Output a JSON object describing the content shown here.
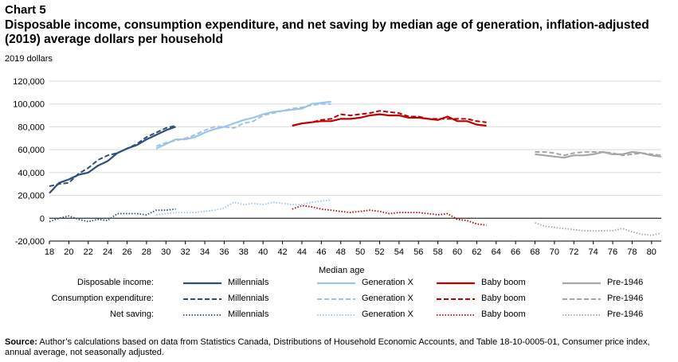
{
  "chart_label": "Chart 5",
  "title": "Disposable income, consumption expenditure, and net saving by median age of generation, inflation-adjusted (2019) average dollars per household",
  "unit_label": "2019 dollars",
  "source": {
    "prefix": "Source:",
    "text": " Author’s calculations based on data from Statistics Canada, Distributions of Household Economic Accounts, and Table 18-10-0005-01, Consumer price index, annual average, not seasonally adjusted."
  },
  "chart_data": {
    "type": "line",
    "xlabel": "Median age",
    "ylabel": "2019 dollars",
    "xlim": [
      18,
      81
    ],
    "ylim": [
      -20000,
      120000
    ],
    "x_ticks": [
      18,
      20,
      22,
      24,
      26,
      28,
      30,
      32,
      34,
      36,
      38,
      40,
      42,
      44,
      46,
      48,
      50,
      52,
      54,
      56,
      58,
      60,
      62,
      64,
      66,
      68,
      70,
      72,
      74,
      76,
      78,
      80
    ],
    "y_ticks": [
      -20000,
      0,
      20000,
      40000,
      60000,
      80000,
      100000,
      120000
    ],
    "y_tick_labels": [
      "-20,000",
      "0",
      "20,000",
      "40,000",
      "60,000",
      "80,000",
      "100,000",
      "120,000"
    ],
    "grid": "horizontal",
    "legend_position": "bottom",
    "legend_rows": [
      "Disposable income:",
      "Consumption expenditure:",
      "Net saving:"
    ],
    "legend_generations": [
      "Millennials",
      "Generation X",
      "Baby boom",
      "Pre-1946"
    ],
    "colors": {
      "Millennials": "#2d4f78",
      "Generation X": "#9dc3e6",
      "Baby boom": "#c00000",
      "Pre-1946": "#a6a6a6"
    },
    "series": [
      {
        "generation": "Millennials",
        "measure": "Disposable income",
        "style": "solid",
        "x": [
          18,
          19,
          20,
          21,
          22,
          23,
          24,
          25,
          26,
          27,
          28,
          29,
          30,
          31
        ],
        "y": [
          22000,
          31000,
          34000,
          38000,
          40000,
          46000,
          50000,
          57000,
          61000,
          64000,
          69000,
          73000,
          77000,
          80000
        ]
      },
      {
        "generation": "Millennials",
        "measure": "Consumption expenditure",
        "style": "dashed",
        "x": [
          18,
          19,
          20,
          21,
          22,
          23,
          24,
          25,
          26,
          27,
          28,
          29,
          30,
          31
        ],
        "y": [
          28000,
          30000,
          31000,
          39000,
          44000,
          51000,
          55000,
          57000,
          61000,
          65000,
          71000,
          75000,
          79000,
          81000
        ]
      },
      {
        "generation": "Millennials",
        "measure": "Net saving",
        "style": "dotted",
        "x": [
          18,
          19,
          20,
          21,
          22,
          23,
          24,
          25,
          26,
          27,
          28,
          29,
          30,
          31
        ],
        "y": [
          -3000,
          0,
          2000,
          -1000,
          -3000,
          -1000,
          -2000,
          4000,
          4000,
          4000,
          3000,
          7000,
          7000,
          8000
        ]
      },
      {
        "generation": "Generation X",
        "measure": "Disposable income",
        "style": "solid",
        "x": [
          29,
          30,
          31,
          32,
          33,
          34,
          35,
          36,
          37,
          38,
          39,
          40,
          41,
          42,
          43,
          44,
          45,
          46,
          47
        ],
        "y": [
          61000,
          65000,
          69000,
          69000,
          71000,
          75000,
          78000,
          80000,
          83000,
          86000,
          88000,
          91000,
          93000,
          94000,
          95000,
          96000,
          100000,
          101000,
          102000
        ]
      },
      {
        "generation": "Generation X",
        "measure": "Consumption expenditure",
        "style": "dashed",
        "x": [
          29,
          30,
          31,
          32,
          33,
          34,
          35,
          36,
          37,
          38,
          39,
          40,
          41,
          42,
          43,
          44,
          45,
          46,
          47
        ],
        "y": [
          63000,
          66000,
          68000,
          70000,
          73000,
          77000,
          80000,
          80000,
          79000,
          83000,
          85000,
          90000,
          92000,
          94000,
          96000,
          97000,
          99000,
          100000,
          100000
        ]
      },
      {
        "generation": "Generation X",
        "measure": "Net saving",
        "style": "dotted",
        "x": [
          29,
          30,
          31,
          32,
          33,
          34,
          35,
          36,
          37,
          38,
          39,
          40,
          41,
          42,
          43,
          44,
          45,
          46,
          47
        ],
        "y": [
          3000,
          4000,
          5000,
          5000,
          5000,
          6000,
          7000,
          9000,
          14000,
          12000,
          13000,
          12000,
          14000,
          13000,
          12000,
          12000,
          14000,
          15000,
          16000
        ]
      },
      {
        "generation": "Baby boom",
        "measure": "Disposable income",
        "style": "solid",
        "x": [
          43,
          44,
          45,
          46,
          47,
          48,
          49,
          50,
          51,
          52,
          53,
          54,
          55,
          56,
          57,
          58,
          59,
          60,
          61,
          62,
          63
        ],
        "y": [
          81000,
          83000,
          84000,
          85000,
          85000,
          87000,
          87000,
          88000,
          90000,
          91000,
          90000,
          90000,
          88000,
          88000,
          87000,
          86000,
          89000,
          85000,
          85000,
          82000,
          81000
        ]
      },
      {
        "generation": "Baby boom",
        "measure": "Consumption expenditure",
        "style": "dashed",
        "x": [
          43,
          44,
          45,
          46,
          47,
          48,
          49,
          50,
          51,
          52,
          53,
          54,
          55,
          56,
          57,
          58,
          59,
          60,
          61,
          62,
          63
        ],
        "y": [
          81000,
          83000,
          84000,
          86000,
          87000,
          91000,
          90000,
          91000,
          92000,
          94000,
          93000,
          92000,
          89000,
          89000,
          87000,
          87000,
          87000,
          87000,
          87000,
          85000,
          84000
        ]
      },
      {
        "generation": "Baby boom",
        "measure": "Net saving",
        "style": "dotted",
        "x": [
          43,
          44,
          45,
          46,
          47,
          48,
          49,
          50,
          51,
          52,
          53,
          54,
          55,
          56,
          57,
          58,
          59,
          60,
          61,
          62,
          63
        ],
        "y": [
          8000,
          11000,
          10000,
          8000,
          7000,
          6000,
          5000,
          6000,
          7000,
          6000,
          4000,
          5000,
          5000,
          5000,
          4000,
          3000,
          4000,
          -1000,
          -2000,
          -5000,
          -6000
        ]
      },
      {
        "generation": "Pre-1946",
        "measure": "Disposable income",
        "style": "solid",
        "x": [
          68,
          69,
          70,
          71,
          72,
          73,
          74,
          75,
          76,
          77,
          78,
          79,
          80,
          81
        ],
        "y": [
          56000,
          55000,
          54000,
          53000,
          55000,
          55000,
          56000,
          58000,
          56000,
          56000,
          58000,
          57000,
          55000,
          54000
        ]
      },
      {
        "generation": "Pre-1946",
        "measure": "Consumption expenditure",
        "style": "dashed",
        "x": [
          68,
          69,
          70,
          71,
          72,
          73,
          74,
          75,
          76,
          77,
          78,
          79,
          80,
          81
        ],
        "y": [
          58000,
          58000,
          57000,
          55000,
          57000,
          58000,
          58000,
          58000,
          57000,
          55000,
          56000,
          57000,
          56000,
          55000
        ]
      },
      {
        "generation": "Pre-1946",
        "measure": "Net saving",
        "style": "dotted",
        "x": [
          68,
          69,
          70,
          71,
          72,
          73,
          74,
          75,
          76,
          77,
          78,
          79,
          80,
          81
        ],
        "y": [
          -4000,
          -7000,
          -8000,
          -9000,
          -10000,
          -11000,
          -11000,
          -11000,
          -11000,
          -9000,
          -12000,
          -14000,
          -15000,
          -13000
        ]
      }
    ]
  }
}
